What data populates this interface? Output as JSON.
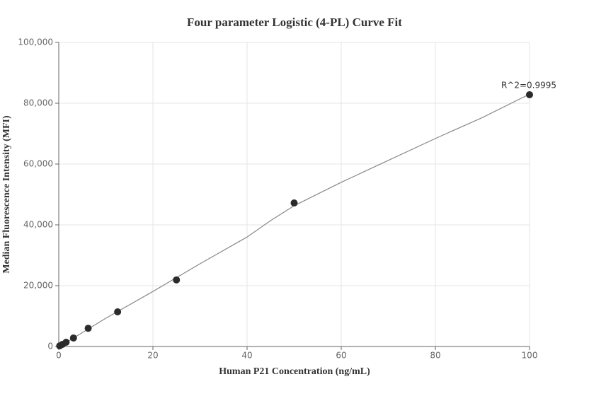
{
  "chart_data": {
    "type": "scatter",
    "title": "Four parameter Logistic (4-PL) Curve Fit",
    "x_label": "Human P21 Concentration (ng/mL)",
    "y_label": "Median Fluorescence Intensity (MFI)",
    "annotation": "R^2=0.9995",
    "xlim": [
      0,
      100
    ],
    "xticks": [
      0,
      20,
      40,
      60,
      80,
      100
    ],
    "ylim": [
      0,
      100000
    ],
    "yticks": [
      0,
      {
        "value": 20000,
        "label": "20,000"
      },
      {
        "value": 40000,
        "label": "40,000"
      },
      {
        "value": 60000,
        "label": "60,000"
      },
      {
        "value": 80000,
        "label": "80,000"
      },
      {
        "value": 100000,
        "label": "100,000"
      }
    ],
    "grid": true,
    "series": [
      {
        "color": "#2b2b2b",
        "x": [
          0.195,
          0.781,
          1.5625,
          3.125,
          6.25,
          12.5,
          25,
          50,
          100
        ],
        "values": [
          200,
          700,
          1400,
          2800,
          6000,
          11400,
          21900,
          47200,
          82800
        ]
      },
      {
        "color": "#888888",
        "x": [
          0.195,
          10,
          20,
          30,
          40,
          45,
          50,
          60,
          70,
          80,
          90,
          100
        ],
        "values": [
          0,
          9300,
          18100,
          27200,
          36000,
          41400,
          46300,
          54000,
          61200,
          68400,
          75300,
          83000
        ]
      }
    ]
  }
}
